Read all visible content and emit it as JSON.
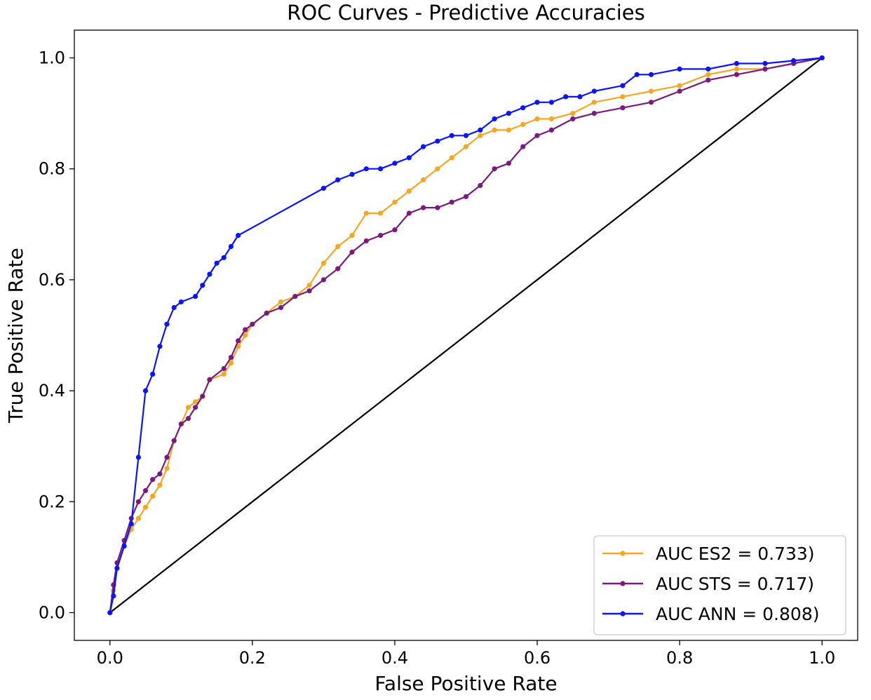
{
  "chart_data": {
    "type": "line",
    "title": "ROC Curves - Predictive Accuracies",
    "xlabel": "False Positive Rate",
    "ylabel": "True Positive Rate",
    "xlim": [
      -0.05,
      1.05
    ],
    "ylim": [
      -0.05,
      1.05
    ],
    "xticks": [
      0.0,
      0.2,
      0.4,
      0.6,
      0.8,
      1.0
    ],
    "yticks": [
      0.0,
      0.2,
      0.4,
      0.6,
      0.8,
      1.0
    ],
    "xtick_labels": [
      "0.0",
      "0.2",
      "0.4",
      "0.6",
      "0.8",
      "1.0"
    ],
    "ytick_labels": [
      "0.0",
      "0.2",
      "0.4",
      "0.6",
      "0.8",
      "1.0"
    ],
    "grid": false,
    "legend_position": "lower-right",
    "series": [
      {
        "name": "AUC ES2 = 0.733)",
        "color": "#f5a623",
        "points": [
          [
            0.0,
            0.0
          ],
          [
            0.005,
            0.04
          ],
          [
            0.01,
            0.08
          ],
          [
            0.02,
            0.12
          ],
          [
            0.03,
            0.15
          ],
          [
            0.04,
            0.17
          ],
          [
            0.05,
            0.19
          ],
          [
            0.06,
            0.21
          ],
          [
            0.07,
            0.23
          ],
          [
            0.08,
            0.26
          ],
          [
            0.09,
            0.31
          ],
          [
            0.1,
            0.34
          ],
          [
            0.11,
            0.37
          ],
          [
            0.12,
            0.38
          ],
          [
            0.13,
            0.39
          ],
          [
            0.14,
            0.42
          ],
          [
            0.16,
            0.43
          ],
          [
            0.17,
            0.45
          ],
          [
            0.18,
            0.48
          ],
          [
            0.19,
            0.5
          ],
          [
            0.2,
            0.52
          ],
          [
            0.22,
            0.54
          ],
          [
            0.24,
            0.56
          ],
          [
            0.26,
            0.57
          ],
          [
            0.28,
            0.59
          ],
          [
            0.3,
            0.63
          ],
          [
            0.32,
            0.66
          ],
          [
            0.34,
            0.68
          ],
          [
            0.36,
            0.72
          ],
          [
            0.38,
            0.72
          ],
          [
            0.4,
            0.74
          ],
          [
            0.42,
            0.76
          ],
          [
            0.44,
            0.78
          ],
          [
            0.46,
            0.8
          ],
          [
            0.48,
            0.82
          ],
          [
            0.5,
            0.84
          ],
          [
            0.52,
            0.86
          ],
          [
            0.54,
            0.87
          ],
          [
            0.56,
            0.87
          ],
          [
            0.58,
            0.88
          ],
          [
            0.6,
            0.89
          ],
          [
            0.62,
            0.89
          ],
          [
            0.65,
            0.9
          ],
          [
            0.68,
            0.92
          ],
          [
            0.72,
            0.93
          ],
          [
            0.76,
            0.94
          ],
          [
            0.8,
            0.95
          ],
          [
            0.84,
            0.97
          ],
          [
            0.88,
            0.98
          ],
          [
            0.92,
            0.98
          ],
          [
            0.96,
            0.99
          ],
          [
            1.0,
            1.0
          ]
        ]
      },
      {
        "name": "AUC STS = 0.717)",
        "color": "#7b1a7e",
        "points": [
          [
            0.0,
            0.0
          ],
          [
            0.005,
            0.05
          ],
          [
            0.01,
            0.09
          ],
          [
            0.02,
            0.13
          ],
          [
            0.03,
            0.17
          ],
          [
            0.04,
            0.2
          ],
          [
            0.05,
            0.22
          ],
          [
            0.06,
            0.24
          ],
          [
            0.07,
            0.25
          ],
          [
            0.08,
            0.28
          ],
          [
            0.09,
            0.31
          ],
          [
            0.1,
            0.34
          ],
          [
            0.11,
            0.35
          ],
          [
            0.12,
            0.37
          ],
          [
            0.13,
            0.39
          ],
          [
            0.14,
            0.42
          ],
          [
            0.16,
            0.44
          ],
          [
            0.17,
            0.46
          ],
          [
            0.18,
            0.49
          ],
          [
            0.19,
            0.51
          ],
          [
            0.2,
            0.52
          ],
          [
            0.22,
            0.54
          ],
          [
            0.24,
            0.55
          ],
          [
            0.26,
            0.57
          ],
          [
            0.28,
            0.58
          ],
          [
            0.3,
            0.6
          ],
          [
            0.32,
            0.62
          ],
          [
            0.34,
            0.65
          ],
          [
            0.36,
            0.67
          ],
          [
            0.38,
            0.68
          ],
          [
            0.4,
            0.69
          ],
          [
            0.42,
            0.72
          ],
          [
            0.44,
            0.73
          ],
          [
            0.46,
            0.73
          ],
          [
            0.48,
            0.74
          ],
          [
            0.5,
            0.75
          ],
          [
            0.52,
            0.77
          ],
          [
            0.54,
            0.8
          ],
          [
            0.56,
            0.81
          ],
          [
            0.58,
            0.84
          ],
          [
            0.6,
            0.86
          ],
          [
            0.62,
            0.87
          ],
          [
            0.65,
            0.89
          ],
          [
            0.68,
            0.9
          ],
          [
            0.72,
            0.91
          ],
          [
            0.76,
            0.92
          ],
          [
            0.8,
            0.94
          ],
          [
            0.84,
            0.96
          ],
          [
            0.88,
            0.97
          ],
          [
            0.92,
            0.98
          ],
          [
            0.96,
            0.99
          ],
          [
            1.0,
            1.0
          ]
        ]
      },
      {
        "name": "AUC ANN = 0.808)",
        "color": "#0a14ff",
        "points": [
          [
            0.0,
            0.0
          ],
          [
            0.005,
            0.03
          ],
          [
            0.01,
            0.08
          ],
          [
            0.02,
            0.12
          ],
          [
            0.03,
            0.16
          ],
          [
            0.04,
            0.28
          ],
          [
            0.05,
            0.4
          ],
          [
            0.06,
            0.43
          ],
          [
            0.07,
            0.48
          ],
          [
            0.08,
            0.52
          ],
          [
            0.09,
            0.55
          ],
          [
            0.1,
            0.56
          ],
          [
            0.12,
            0.57
          ],
          [
            0.13,
            0.59
          ],
          [
            0.14,
            0.61
          ],
          [
            0.15,
            0.63
          ],
          [
            0.16,
            0.64
          ],
          [
            0.17,
            0.66
          ],
          [
            0.18,
            0.68
          ],
          [
            0.3,
            0.765
          ],
          [
            0.32,
            0.78
          ],
          [
            0.34,
            0.79
          ],
          [
            0.36,
            0.8
          ],
          [
            0.38,
            0.8
          ],
          [
            0.4,
            0.81
          ],
          [
            0.42,
            0.82
          ],
          [
            0.44,
            0.84
          ],
          [
            0.46,
            0.85
          ],
          [
            0.48,
            0.86
          ],
          [
            0.5,
            0.86
          ],
          [
            0.52,
            0.87
          ],
          [
            0.54,
            0.89
          ],
          [
            0.56,
            0.9
          ],
          [
            0.58,
            0.91
          ],
          [
            0.6,
            0.92
          ],
          [
            0.62,
            0.92
          ],
          [
            0.64,
            0.93
          ],
          [
            0.66,
            0.93
          ],
          [
            0.68,
            0.94
          ],
          [
            0.72,
            0.95
          ],
          [
            0.74,
            0.97
          ],
          [
            0.76,
            0.97
          ],
          [
            0.8,
            0.98
          ],
          [
            0.84,
            0.98
          ],
          [
            0.88,
            0.99
          ],
          [
            0.92,
            0.99
          ],
          [
            0.96,
            0.995
          ],
          [
            1.0,
            1.0
          ]
        ]
      },
      {
        "name": "",
        "color": "#000000",
        "points": [
          [
            0.0,
            0.0
          ],
          [
            1.0,
            1.0
          ]
        ]
      }
    ]
  }
}
